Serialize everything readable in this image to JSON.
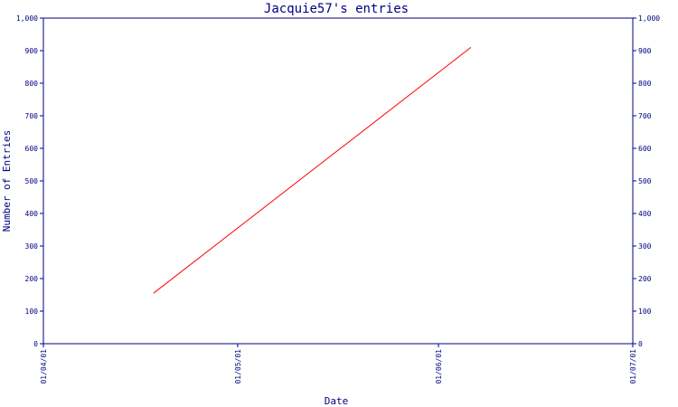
{
  "chart_data": {
    "type": "line",
    "title": "Jacquie57's entries",
    "xlabel": "Date",
    "ylabel": "Number of Entries",
    "x_tick_labels": [
      "01/04/01",
      "01/05/01",
      "01/06/01",
      "01/07/01"
    ],
    "x_ticks": [
      "2001-04-01",
      "2001-05-01",
      "2001-06-01",
      "2001-07-01"
    ],
    "ylim": [
      0,
      1000
    ],
    "y_ticks": [
      0,
      100,
      200,
      300,
      400,
      500,
      600,
      700,
      800,
      900,
      1000
    ],
    "y_tick_labels": [
      "0",
      "100",
      "200",
      "300",
      "400",
      "500",
      "600",
      "700",
      "800",
      "900",
      "1,000"
    ],
    "y_axis_right": true,
    "grid": false,
    "series": [
      {
        "color": "#ff0000",
        "x": [
          "2001-04-18",
          "2001-06-06"
        ],
        "values": [
          155,
          910
        ]
      }
    ],
    "colors": {
      "axis": "#000080",
      "text": "#000080",
      "line": "#ff0000",
      "background": "#ffffff"
    }
  }
}
